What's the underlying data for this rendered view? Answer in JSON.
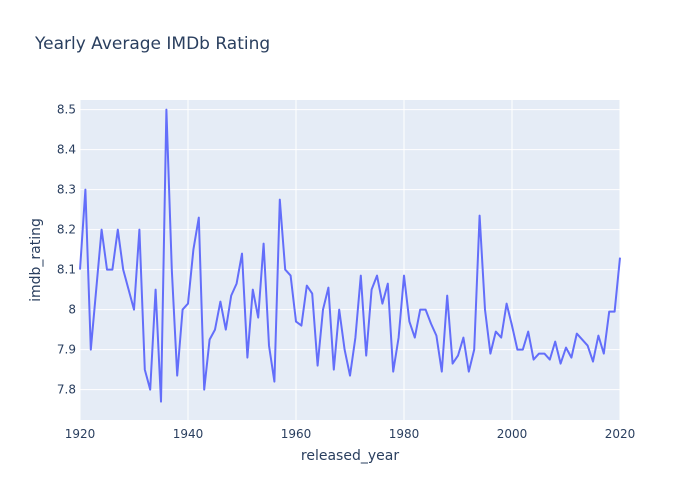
{
  "chart_data": {
    "type": "line",
    "title": "Yearly Average IMDb Rating",
    "xlabel": "released_year",
    "ylabel": "imdb_rating",
    "xlim": [
      1920,
      2020
    ],
    "ylim": [
      7.724,
      8.524
    ],
    "xticks": [
      1920,
      1940,
      1960,
      1980,
      2000,
      2020
    ],
    "yticks": [
      7.8,
      7.9,
      8,
      8.1,
      8.2,
      8.3,
      8.4,
      8.5
    ],
    "ytick_labels": [
      "7.8",
      "7.9",
      "8",
      "8.1",
      "8.2",
      "8.3",
      "8.4",
      "8.5"
    ],
    "grid": true,
    "legend": false,
    "colors": {
      "line": "#636efa",
      "plot_bg": "#e5ecf6",
      "grid": "#ffffff",
      "text": "#2a3f5f"
    },
    "series": [
      {
        "x": [
          1920,
          1921,
          1922,
          1923,
          1924,
          1925,
          1926,
          1927,
          1928,
          1930,
          1931,
          1932,
          1933,
          1934,
          1935,
          1936,
          1937,
          1938,
          1939,
          1940,
          1941,
          1942,
          1943,
          1944,
          1945,
          1946,
          1947,
          1948,
          1949,
          1950,
          1951,
          1952,
          1953,
          1954,
          1955,
          1956,
          1957,
          1958,
          1959,
          1960,
          1961,
          1962,
          1963,
          1964,
          1965,
          1966,
          1967,
          1968,
          1969,
          1970,
          1971,
          1972,
          1973,
          1974,
          1975,
          1976,
          1977,
          1978,
          1979,
          1980,
          1981,
          1982,
          1983,
          1984,
          1985,
          1986,
          1987,
          1988,
          1989,
          1990,
          1991,
          1992,
          1993,
          1994,
          1995,
          1996,
          1997,
          1998,
          1999,
          2000,
          2001,
          2002,
          2003,
          2004,
          2005,
          2006,
          2007,
          2008,
          2009,
          2010,
          2011,
          2012,
          2013,
          2014,
          2015,
          2016,
          2017,
          2018,
          2019,
          2020
        ],
        "values": [
          8.1,
          8.3,
          7.9,
          8.05,
          8.2,
          8.1,
          8.1,
          8.2,
          8.1,
          8.0,
          8.2,
          7.85,
          7.8,
          8.05,
          7.77,
          8.5,
          8.1,
          7.835,
          8.0,
          8.015,
          8.15,
          8.23,
          7.8,
          7.925,
          7.95,
          8.02,
          7.95,
          8.035,
          8.065,
          8.14,
          7.88,
          8.05,
          7.98,
          8.165,
          7.91,
          7.82,
          8.275,
          8.1,
          8.085,
          7.97,
          7.96,
          8.06,
          8.04,
          7.86,
          8.0,
          8.055,
          7.85,
          8.0,
          7.9,
          7.835,
          7.93,
          8.085,
          7.885,
          8.05,
          8.085,
          8.015,
          8.065,
          7.845,
          7.93,
          8.085,
          7.97,
          7.93,
          8.0,
          8.0,
          7.965,
          7.935,
          7.845,
          8.035,
          7.865,
          7.885,
          7.93,
          7.845,
          7.9,
          8.235,
          8.0,
          7.89,
          7.945,
          7.93,
          8.015,
          7.96,
          7.9,
          7.9,
          7.945,
          7.875,
          7.89,
          7.89,
          7.875,
          7.92,
          7.865,
          7.905,
          7.88,
          7.94,
          7.925,
          7.91,
          7.87,
          7.935,
          7.89,
          7.995,
          7.995,
          8.13
        ]
      }
    ]
  }
}
